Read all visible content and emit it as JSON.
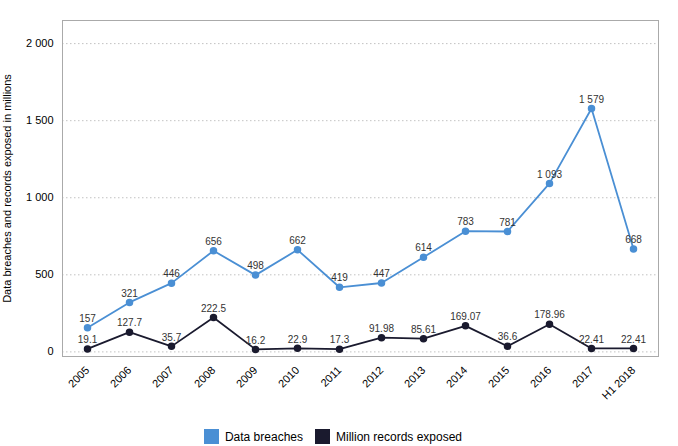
{
  "chart_data": {
    "type": "line",
    "categories": [
      "2005",
      "2006",
      "2007",
      "2008",
      "2009",
      "2010",
      "2011",
      "2012",
      "2013",
      "2014",
      "2015",
      "2016",
      "2017",
      "H1 2018"
    ],
    "series": [
      {
        "name": "Data breaches",
        "color": "#4a8fd4",
        "marker": "circle",
        "values": [
          157,
          321,
          446,
          656,
          498,
          662,
          419,
          447,
          614,
          783,
          781,
          1093,
          1579,
          668
        ],
        "value_labels": [
          "157",
          "321",
          "446",
          "656",
          "498",
          "662",
          "419",
          "447",
          "614",
          "783",
          "781",
          "1 093",
          "1 579",
          "668"
        ]
      },
      {
        "name": "Million records exposed",
        "color": "#1a1a2e",
        "marker": "circle",
        "values": [
          19.1,
          127.7,
          35.7,
          222.5,
          16.2,
          22.9,
          17.3,
          91.98,
          85.61,
          169.07,
          36.6,
          178.96,
          22.41,
          22.41
        ]
      }
    ],
    "ylabel": "Data breaches and records exposed in millions",
    "ylim": [
      -30,
      2150
    ],
    "yticks": [
      0,
      500,
      {
        "value": 1000,
        "label": "1 000"
      },
      {
        "value": 1500,
        "label": "1 500"
      },
      {
        "value": 2000,
        "label": "2 000"
      }
    ],
    "grid": true,
    "legend": "bottom",
    "data_labels": true
  }
}
